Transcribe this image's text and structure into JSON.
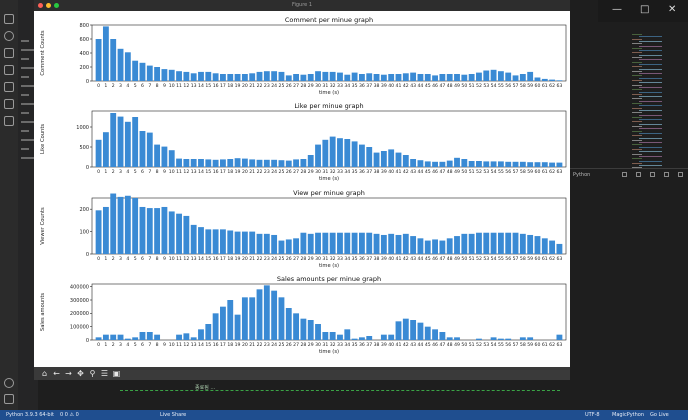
{
  "figure_window": {
    "title": "Figure 1"
  },
  "toolbar": {
    "icons": [
      "home-icon",
      "back-icon",
      "forward-icon",
      "pan-icon",
      "zoom-icon",
      "configure-icon",
      "save-icon"
    ]
  },
  "statusbar": {
    "python": "Python 3.9.3 64-bit",
    "errors": "0 0 ⚠ 0",
    "live_share": "Live Share",
    "spacing": "UTF-8",
    "lang": "MagicPython",
    "golive": "Go Live"
  },
  "terminal": {
    "text": "종료됨 …"
  },
  "panel": {
    "tab": "Python"
  },
  "chart_data": [
    {
      "type": "bar",
      "title": "Comment per minue graph",
      "xlabel": "time (s)",
      "ylabel": "Comment Counts",
      "ylim": [
        0,
        800
      ],
      "yticks": [
        0,
        200,
        400,
        600,
        800
      ],
      "categories": [
        "0",
        "1",
        "2",
        "3",
        "4",
        "5",
        "6",
        "7",
        "8",
        "9",
        "10",
        "11",
        "12",
        "13",
        "14",
        "15",
        "16",
        "17",
        "18",
        "19",
        "20",
        "21",
        "22",
        "23",
        "24",
        "25",
        "26",
        "27",
        "28",
        "29",
        "30",
        "31",
        "32",
        "33",
        "34",
        "35",
        "36",
        "37",
        "38",
        "39",
        "40",
        "41",
        "42",
        "43",
        "44",
        "45",
        "46",
        "47",
        "48",
        "49",
        "50",
        "51",
        "52",
        "53",
        "54",
        "55",
        "56",
        "57",
        "58",
        "59",
        "60",
        "61",
        "62",
        "63"
      ],
      "values": [
        600,
        780,
        600,
        460,
        410,
        290,
        260,
        220,
        200,
        170,
        160,
        140,
        130,
        110,
        130,
        130,
        110,
        100,
        100,
        100,
        100,
        110,
        130,
        140,
        140,
        130,
        80,
        100,
        90,
        100,
        140,
        130,
        130,
        120,
        90,
        120,
        100,
        110,
        100,
        90,
        100,
        100,
        110,
        120,
        100,
        100,
        80,
        100,
        100,
        100,
        90,
        100,
        120,
        150,
        160,
        140,
        120,
        80,
        100,
        130,
        50,
        30,
        20,
        10
      ]
    },
    {
      "type": "bar",
      "title": "Like per minue graph",
      "xlabel": "time (s)",
      "ylabel": "Like Counts",
      "ylim": [
        0,
        1400
      ],
      "yticks": [
        0,
        500,
        1000
      ],
      "categories": [
        "0",
        "1",
        "2",
        "3",
        "4",
        "5",
        "6",
        "7",
        "8",
        "9",
        "10",
        "11",
        "12",
        "13",
        "14",
        "15",
        "16",
        "17",
        "18",
        "19",
        "20",
        "21",
        "22",
        "23",
        "24",
        "25",
        "26",
        "27",
        "28",
        "29",
        "30",
        "31",
        "32",
        "33",
        "34",
        "35",
        "36",
        "37",
        "38",
        "39",
        "40",
        "41",
        "42",
        "43",
        "44",
        "45",
        "46",
        "47",
        "48",
        "49",
        "50",
        "51",
        "52",
        "53",
        "54",
        "55",
        "56",
        "57",
        "58",
        "59",
        "60",
        "61",
        "62",
        "63"
      ],
      "values": [
        680,
        870,
        1350,
        1260,
        1130,
        1250,
        900,
        860,
        560,
        510,
        420,
        210,
        200,
        200,
        200,
        190,
        180,
        190,
        200,
        220,
        210,
        190,
        180,
        180,
        180,
        170,
        160,
        190,
        200,
        300,
        560,
        680,
        760,
        720,
        700,
        640,
        560,
        500,
        360,
        400,
        440,
        360,
        300,
        200,
        170,
        140,
        130,
        130,
        160,
        230,
        200,
        150,
        150,
        140,
        140,
        140,
        130,
        130,
        130,
        120,
        120,
        120,
        110,
        110
      ]
    },
    {
      "type": "bar",
      "title": "View per minue graph",
      "xlabel": "time (s)",
      "ylabel": "Viewer Counts",
      "ylim": [
        0,
        250
      ],
      "yticks": [
        0,
        100,
        200
      ],
      "categories": [
        "0",
        "1",
        "2",
        "3",
        "4",
        "5",
        "6",
        "7",
        "8",
        "9",
        "10",
        "11",
        "12",
        "13",
        "14",
        "15",
        "16",
        "17",
        "18",
        "19",
        "20",
        "21",
        "22",
        "23",
        "24",
        "25",
        "26",
        "27",
        "28",
        "29",
        "30",
        "31",
        "32",
        "33",
        "34",
        "35",
        "36",
        "37",
        "38",
        "39",
        "40",
        "41",
        "42",
        "43",
        "44",
        "45",
        "46",
        "47",
        "48",
        "49",
        "50",
        "51",
        "52",
        "53",
        "54",
        "55",
        "56",
        "57",
        "58",
        "59",
        "60",
        "61",
        "62",
        "63"
      ],
      "values": [
        195,
        210,
        270,
        255,
        260,
        250,
        210,
        205,
        205,
        210,
        190,
        180,
        170,
        130,
        120,
        110,
        110,
        110,
        105,
        100,
        100,
        100,
        90,
        90,
        85,
        60,
        65,
        70,
        95,
        90,
        95,
        95,
        95,
        95,
        95,
        95,
        95,
        95,
        90,
        85,
        90,
        85,
        90,
        80,
        70,
        60,
        65,
        60,
        70,
        80,
        90,
        90,
        95,
        95,
        95,
        95,
        95,
        95,
        90,
        85,
        80,
        70,
        60,
        45
      ]
    },
    {
      "type": "bar",
      "title": "Sales amounts per minue graph",
      "xlabel": "time (s)",
      "ylabel": "Sales amounts",
      "ylim": [
        0,
        420000
      ],
      "yticks": [
        0,
        100000,
        200000,
        300000,
        400000
      ],
      "categories": [
        "0",
        "1",
        "2",
        "3",
        "4",
        "5",
        "6",
        "7",
        "8",
        "9",
        "10",
        "11",
        "12",
        "13",
        "14",
        "15",
        "16",
        "17",
        "18",
        "19",
        "20",
        "21",
        "22",
        "23",
        "24",
        "25",
        "26",
        "27",
        "28",
        "29",
        "30",
        "31",
        "32",
        "33",
        "34",
        "35",
        "36",
        "37",
        "38",
        "39",
        "40",
        "41",
        "42",
        "43",
        "44",
        "45",
        "46",
        "47",
        "48",
        "49",
        "50",
        "51",
        "52",
        "53",
        "54",
        "55",
        "56",
        "57",
        "58",
        "59",
        "60",
        "61",
        "62",
        "63"
      ],
      "values": [
        20000,
        40000,
        40000,
        40000,
        10000,
        20000,
        60000,
        60000,
        40000,
        0,
        0,
        40000,
        50000,
        20000,
        80000,
        120000,
        200000,
        250000,
        300000,
        190000,
        320000,
        320000,
        380000,
        410000,
        370000,
        320000,
        240000,
        200000,
        160000,
        150000,
        120000,
        60000,
        60000,
        40000,
        80000,
        10000,
        20000,
        30000,
        0,
        40000,
        40000,
        140000,
        160000,
        150000,
        130000,
        100000,
        80000,
        60000,
        20000,
        20000,
        0,
        0,
        10000,
        0,
        20000,
        10000,
        10000,
        0,
        20000,
        20000,
        0,
        0,
        0,
        40000
      ]
    }
  ]
}
